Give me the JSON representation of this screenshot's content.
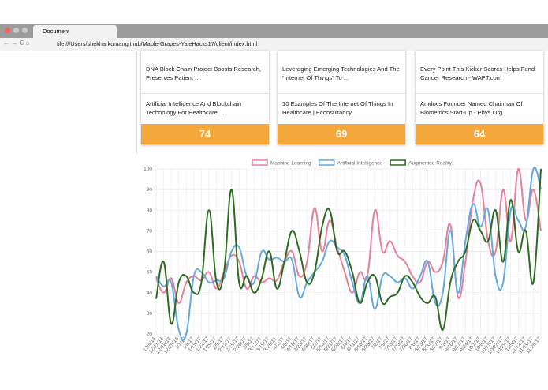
{
  "browser": {
    "tab_title": "Document",
    "url": "file:///Users/shekharkumar/github/Maple-Grapes-YaleHacks17/client/index.html"
  },
  "cards": [
    {
      "headlines": [
        "DNA Block Chain Project Boosts Research, Preserves Patient ...",
        "Artificial Intelligence And Blockchain Technology For Healthcare ..."
      ],
      "score": "74"
    },
    {
      "headlines": [
        "Leveraging Emerging Technologies And The “Internet Of Things” To ...",
        "10 Examples Of The Internet Of Things In Healthcare | Econsultancy"
      ],
      "score": "69"
    },
    {
      "headlines": [
        "Every Point This Kicker Scores Helps Fund Cancer Research - WAPT.com",
        "Amdocs Founder Named Chairman Of Biometrics Start-Up - Phys.Org"
      ],
      "score": "64"
    }
  ],
  "chart_data": {
    "type": "line",
    "categories": [
      "12/4/16",
      "12/11/16",
      "12/18/16",
      "12/25/16",
      "1/1/17",
      "1/8/17",
      "1/15/17",
      "1/22/17",
      "1/29/17",
      "2/5/17",
      "2/12/17",
      "2/19/17",
      "2/26/17",
      "3/5/17",
      "3/12/17",
      "3/19/17",
      "3/26/17",
      "4/2/17",
      "4/9/17",
      "4/16/17",
      "4/23/17",
      "4/30/17",
      "5/7/17",
      "5/14/17",
      "5/21/17",
      "5/28/17",
      "6/4/17",
      "6/11/17",
      "6/18/17",
      "6/25/17",
      "7/2/17",
      "7/9/17",
      "7/16/17",
      "7/23/17",
      "7/30/17",
      "8/6/17",
      "8/13/17",
      "8/20/17",
      "8/27/17",
      "9/3/17",
      "9/10/17",
      "9/17/17",
      "9/24/17",
      "10/1/17",
      "10/8/17",
      "10/15/17",
      "10/22/17",
      "10/29/17",
      "11/5/17",
      "11/12/17",
      "11/19/17",
      "11/26/17"
    ],
    "series": [
      {
        "name": "Machine Learning",
        "color": "#e8809a",
        "values": [
          47,
          40,
          47,
          35,
          45,
          48,
          46,
          50,
          42,
          50,
          58,
          55,
          42,
          48,
          45,
          47,
          46,
          55,
          60,
          48,
          55,
          81,
          60,
          75,
          62,
          50,
          40,
          50,
          48,
          80,
          60,
          65,
          58,
          55,
          48,
          45,
          55,
          50,
          55,
          73,
          38,
          55,
          85,
          93,
          65,
          60,
          90,
          65,
          100,
          75,
          90,
          70
        ]
      },
      {
        "name": "Artificial Intelligence",
        "color": "#63a9e0",
        "values": [
          48,
          43,
          45,
          22,
          20,
          48,
          50,
          45,
          46,
          47,
          60,
          62,
          48,
          45,
          60,
          56,
          57,
          55,
          56,
          38,
          45,
          50,
          55,
          65,
          62,
          58,
          45,
          35,
          48,
          32,
          48,
          48,
          45,
          47,
          42,
          48,
          55,
          35,
          40,
          70,
          40,
          65,
          83,
          72,
          80,
          48,
          45,
          80,
          75,
          72,
          100,
          90
        ]
      },
      {
        "name": "Augmented Reality",
        "color": "#2f6a22",
        "values": [
          37,
          55,
          25,
          45,
          48,
          40,
          45,
          80,
          45,
          50,
          90,
          45,
          48,
          40,
          47,
          60,
          42,
          55,
          70,
          60,
          45,
          50,
          72,
          80,
          60,
          60,
          50,
          35,
          45,
          48,
          35,
          38,
          40,
          48,
          45,
          38,
          35,
          38,
          22,
          45,
          55,
          60,
          75,
          70,
          65,
          80,
          55,
          85,
          60,
          70,
          45,
          100
        ]
      }
    ],
    "ylim": [
      20,
      100
    ],
    "yticks": [
      20,
      30,
      40,
      50,
      60,
      70,
      80,
      90,
      100
    ],
    "grid": true,
    "legend_position": "top"
  }
}
